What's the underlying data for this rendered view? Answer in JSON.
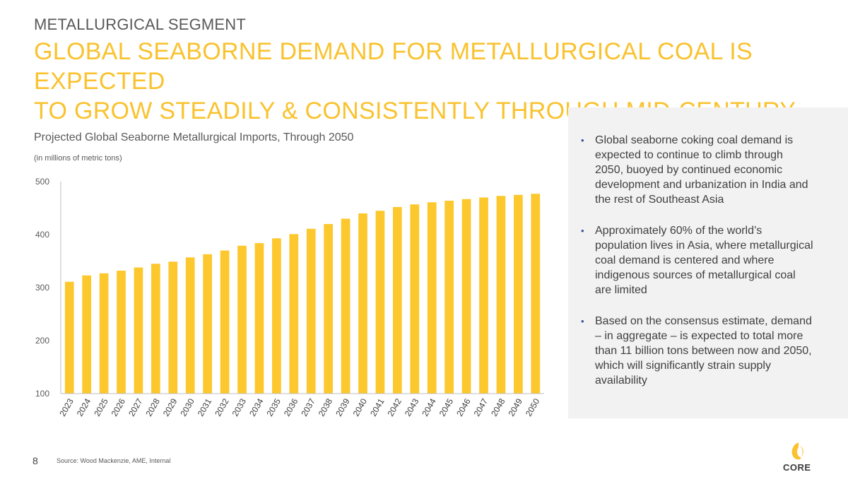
{
  "header": {
    "segment": "METALLURGICAL SEGMENT",
    "headline_line1": "GLOBAL SEABORNE DEMAND FOR METALLURGICAL COAL IS EXPECTED",
    "headline_line2": "TO GROW STEADILY & CONSISTENTLY THROUGH MID-CENTURY"
  },
  "chart_data": {
    "type": "bar",
    "title": "Projected Global Seaborne Metallurgical Imports, Through 2050",
    "subtitle": "(in millions of metric tons)",
    "xlabel": "",
    "ylabel": "",
    "categories": [
      "2023",
      "2024",
      "2025",
      "2026",
      "2027",
      "2028",
      "2029",
      "2030",
      "2031",
      "2032",
      "2033",
      "2034",
      "2035",
      "2036",
      "2037",
      "2038",
      "2039",
      "2040",
      "2041",
      "2042",
      "2043",
      "2044",
      "2045",
      "2046",
      "2047",
      "2048",
      "2049",
      "2050"
    ],
    "values": [
      311,
      323,
      327,
      332,
      338,
      345,
      349,
      357,
      363,
      370,
      379,
      384,
      393,
      401,
      411,
      420,
      430,
      440,
      445,
      452,
      457,
      461,
      464,
      467,
      470,
      473,
      475,
      477
    ],
    "ylim": [
      100,
      500
    ],
    "yticks": [
      100,
      200,
      300,
      400,
      500
    ],
    "grid": false,
    "bar_color": "#fcc82d",
    "axis_color": "#bfbfbf"
  },
  "panel": {
    "bullets": [
      "Global seaborne coking coal demand is expected to continue to climb through 2050, buoyed by continued economic development and urbanization in India and the rest of Southeast Asia",
      "Approximately 60% of the world’s population lives in Asia, where metallurgical coal demand is centered and where indigenous sources of metallurgical coal are limited",
      "Based on the consensus estimate, demand – in aggregate – is expected to total more than 11 billion tons between now and 2050, which will significantly strain supply availability"
    ],
    "bullet_glyph": "•"
  },
  "footer": {
    "page_number": "8",
    "source": "Source: Wood Mackenzie, AME, Internal",
    "logo_text": "CORE",
    "logo_color": "#f9c22e"
  }
}
